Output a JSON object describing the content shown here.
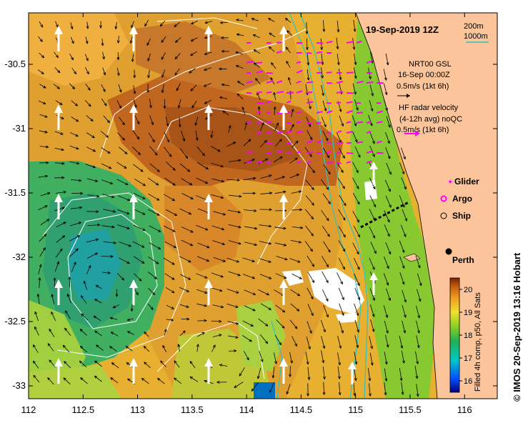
{
  "title": "19-Sep-2019 12Z",
  "scale": {
    "line1": "200m",
    "line2": "1000m"
  },
  "gsl": {
    "line1": "NRT00 GSL",
    "line2": "16-Sep 00:00Z",
    "line3": "0.5m/s (1kt 6h)"
  },
  "hf": {
    "line1": "HF radar velocity",
    "line2": "(4-12h avg) noQC",
    "line3": "0.5m/s (1kt 6h)"
  },
  "legend": {
    "glider": "Glider",
    "argo": "Argo",
    "ship": "Ship"
  },
  "city": "Perth",
  "colorbar": {
    "caption": "Filled 4h comp, p50, All Sats",
    "ticks": [
      "16",
      "17",
      "18",
      "19",
      "20"
    ],
    "range": [
      15.5,
      20.5
    ]
  },
  "credit": "© IMOS 20-Sep-2019 13:16 Hobart",
  "axes": {
    "x_ticks": [
      "112",
      "112.5",
      "113",
      "113.5",
      "114",
      "114.5",
      "115",
      "115.5",
      "116"
    ],
    "y_ticks": [
      "-30.5",
      "-31",
      "-31.5",
      "-32",
      "-32.5",
      "-33"
    ],
    "xlim": [
      112,
      116.3
    ],
    "ylim": [
      -33.1,
      -30.1
    ]
  },
  "colors": {
    "land": "#fbc49a",
    "glider": "#ff00ff",
    "hf_vectors": "#ff00ff",
    "isobath_200": "#22bbbb",
    "isobath_1000": "#22bbbb"
  }
}
